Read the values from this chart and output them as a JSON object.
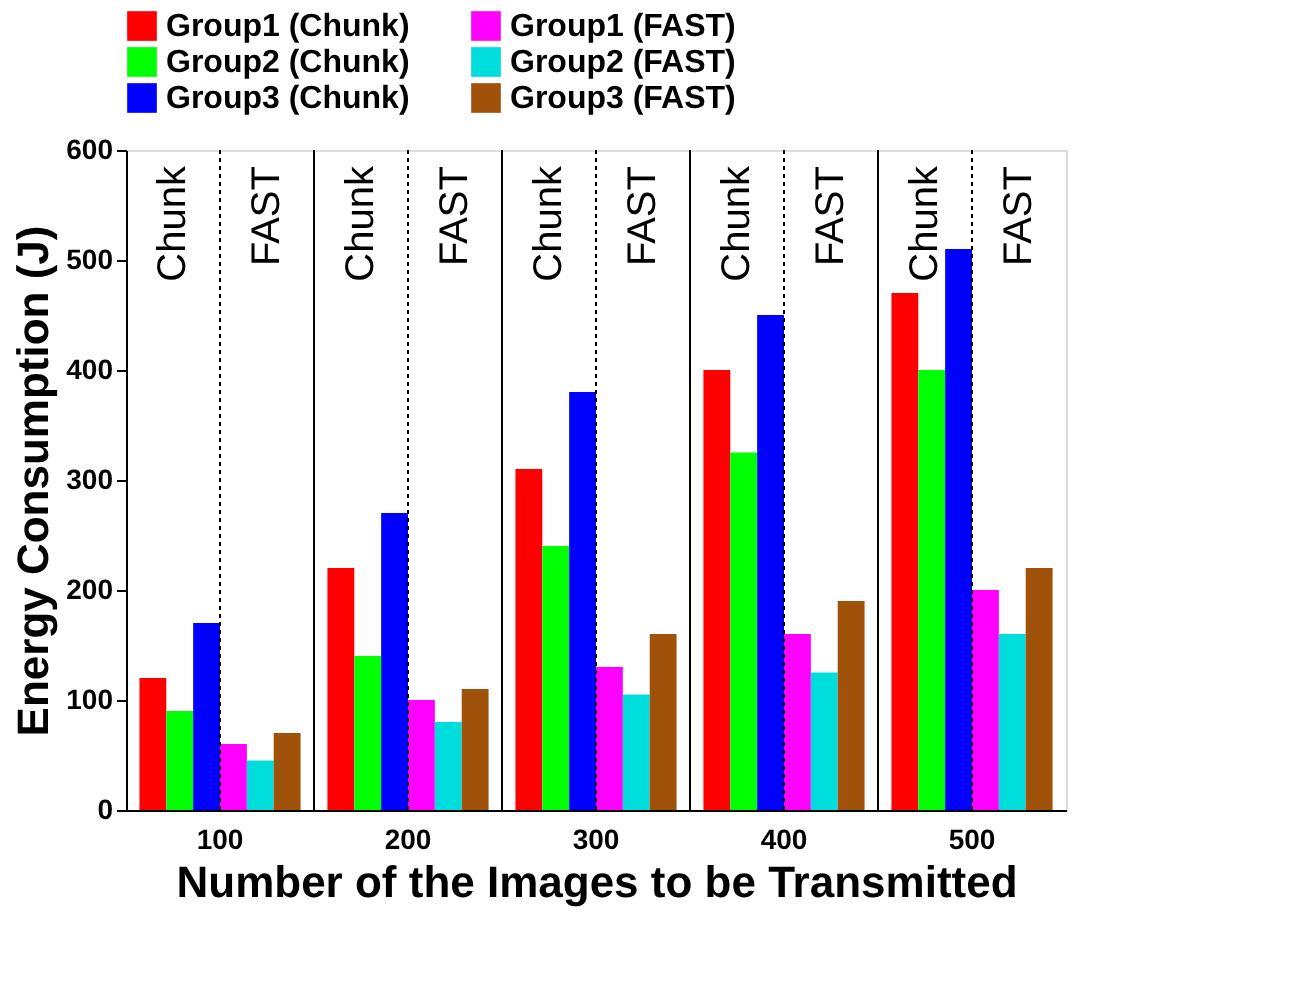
{
  "chart_data": {
    "type": "bar",
    "xlabel": "Number of the Images to be Transmitted",
    "ylabel": "Energy Consumption (J)",
    "categories": [
      "100",
      "200",
      "300",
      "400",
      "500"
    ],
    "series": [
      {
        "name": "Group1 (Chunk)",
        "color": "#ff0000",
        "values": [
          120,
          220,
          310,
          400,
          470
        ]
      },
      {
        "name": "Group2 (Chunk)",
        "color": "#00ff00",
        "values": [
          90,
          140,
          240,
          325,
          400
        ]
      },
      {
        "name": "Group3 (Chunk)",
        "color": "#0000ff",
        "values": [
          170,
          270,
          380,
          450,
          510
        ]
      },
      {
        "name": "Group1 (FAST)",
        "color": "#ff00ff",
        "values": [
          60,
          100,
          130,
          160,
          200
        ]
      },
      {
        "name": "Group2 (FAST)",
        "color": "#00dddd",
        "values": [
          45,
          80,
          105,
          125,
          160
        ]
      },
      {
        "name": "Group3 (FAST)",
        "color": "#a0520a",
        "values": [
          70,
          110,
          160,
          190,
          220
        ]
      }
    ],
    "ylim": [
      0,
      600
    ],
    "yticks": [
      0,
      100,
      200,
      300,
      400,
      500,
      600
    ],
    "grid": "x",
    "legend": "top",
    "annotations": [
      "Chunk",
      "FAST",
      "Chunk",
      "FAST",
      "Chunk",
      "FAST",
      "Chunk",
      "FAST",
      "Chunk",
      "FAST"
    ]
  }
}
